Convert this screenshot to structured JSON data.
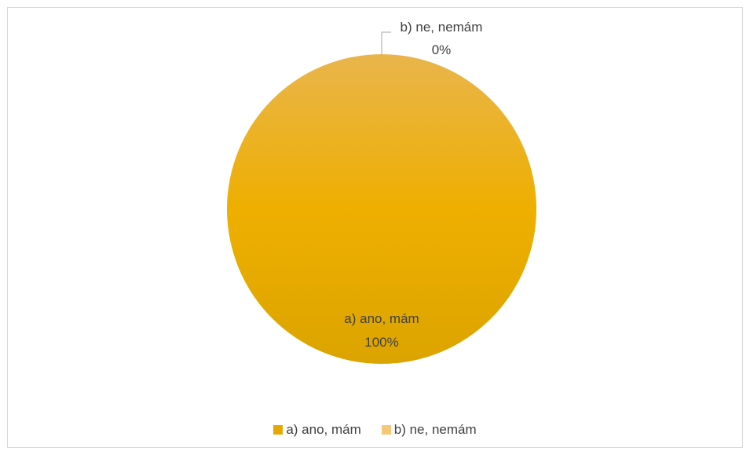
{
  "chart_data": {
    "type": "pie",
    "categories": [
      "a) ano, mám",
      "b) ne, nemám"
    ],
    "values": [
      100,
      0
    ],
    "data_labels": [
      {
        "name": "a) ano, mám",
        "value": "100%"
      },
      {
        "name": "b) ne, nemám",
        "value": "0%"
      }
    ],
    "colors": [
      "#eaac00",
      "#f5c979"
    ],
    "legend": {
      "position": "bottom",
      "items": [
        {
          "label": "a) ano, mám",
          "color": "#e6a800"
        },
        {
          "label": "b) ne, nemám",
          "color": "#f6c776"
        }
      ]
    }
  }
}
